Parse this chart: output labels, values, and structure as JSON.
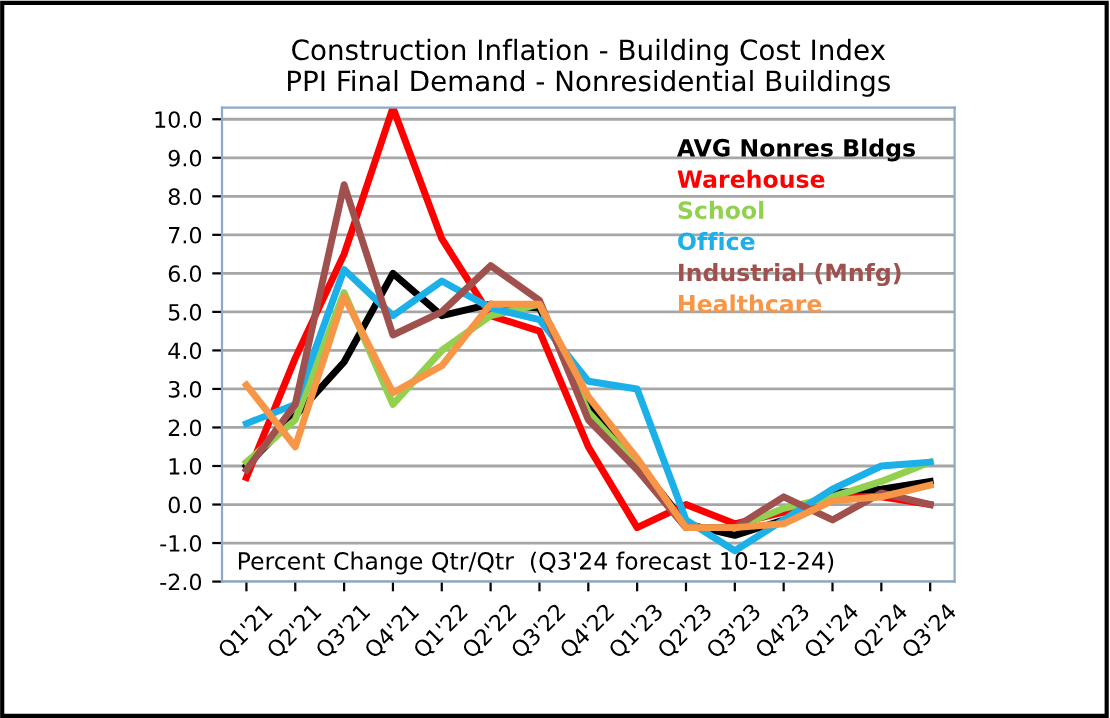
{
  "chart_data": {
    "type": "line",
    "title": "Construction Inflation - Building Cost Index\nPPI Final Demand - Nonresidential Buildings",
    "categories": [
      "Q1'21",
      "Q2'21",
      "Q3'21",
      "Q4'21",
      "Q1'22",
      "Q2'22",
      "Q3'22",
      "Q4'22",
      "Q1'23",
      "Q2'23",
      "Q3'23",
      "Q4'23",
      "Q1'24",
      "Q2'24",
      "Q3'24"
    ],
    "series": [
      {
        "name": "AVG Nonres Bldgs",
        "color": "#000000",
        "values": [
          1.0,
          2.3,
          3.7,
          6.0,
          4.9,
          5.2,
          5.1,
          2.6,
          1.1,
          -0.5,
          -0.8,
          -0.4,
          0.3,
          0.4,
          0.6
        ]
      },
      {
        "name": "Warehouse",
        "color": "#ff0000",
        "values": [
          0.7,
          3.8,
          6.5,
          10.3,
          6.9,
          4.9,
          4.5,
          1.5,
          -0.6,
          0.0,
          -0.5,
          -0.2,
          0.2,
          0.2,
          0.0
        ]
      },
      {
        "name": "School",
        "color": "#92d050",
        "values": [
          1.1,
          2.2,
          5.5,
          2.6,
          4.0,
          4.9,
          5.2,
          2.4,
          1.0,
          -0.6,
          -0.6,
          -0.1,
          0.2,
          0.6,
          1.1
        ]
      },
      {
        "name": "Office",
        "color": "#1cb0e8",
        "values": [
          2.1,
          2.6,
          6.1,
          4.9,
          5.8,
          5.1,
          4.8,
          3.2,
          3.0,
          -0.4,
          -1.2,
          -0.4,
          0.4,
          1.0,
          1.1
        ]
      },
      {
        "name": "Industrial (Mnfg)",
        "color": "#a0504d",
        "values": [
          0.9,
          2.6,
          8.3,
          4.4,
          5.0,
          6.2,
          5.3,
          2.2,
          0.9,
          -0.6,
          -0.6,
          0.2,
          -0.4,
          0.3,
          0.0
        ]
      },
      {
        "name": "Healthcare",
        "color": "#f79646",
        "values": [
          3.1,
          1.5,
          5.4,
          2.9,
          3.6,
          5.2,
          5.2,
          2.8,
          1.2,
          -0.6,
          -0.6,
          -0.5,
          0.1,
          0.2,
          0.5
        ]
      }
    ],
    "ylim": [
      -2,
      10.3
    ],
    "yticks": [
      {
        "value": -2,
        "label": "-2.0"
      },
      {
        "value": -1,
        "label": "-1.0"
      },
      {
        "value": 0,
        "label": "0.0"
      },
      {
        "value": 1,
        "label": "1.0"
      },
      {
        "value": 2,
        "label": "2.0"
      },
      {
        "value": 3,
        "label": "3.0"
      },
      {
        "value": 4,
        "label": "4.0"
      },
      {
        "value": 5,
        "label": "5.0"
      },
      {
        "value": 6,
        "label": "6.0"
      },
      {
        "value": 7,
        "label": "7.0"
      },
      {
        "value": 8,
        "label": "8.0"
      },
      {
        "value": 9,
        "label": "9.0"
      },
      {
        "value": 10,
        "label": "10.0"
      }
    ],
    "annotations": [
      "Percent Change Qtr/Qtr  (Q3'24 forecast 10-12-24)"
    ],
    "grid": "y",
    "legend": "top right",
    "marker": "none",
    "line_style": "solid"
  }
}
